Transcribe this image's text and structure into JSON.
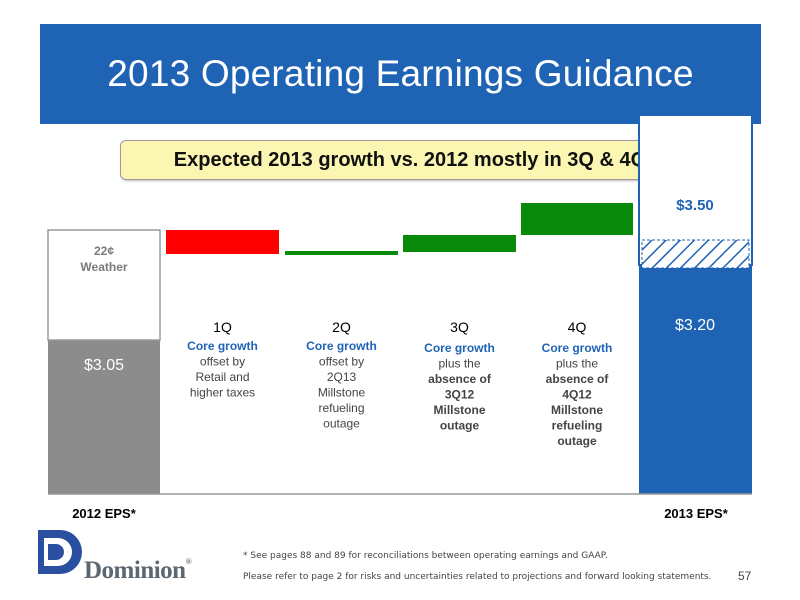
{
  "slide": {
    "title": "2013 Operating Earnings Guidance",
    "callout": "Expected 2013 growth vs. 2012 mostly in 3Q & 4Q",
    "footnote": "* See pages 88 and 89 for reconciliations between operating earnings and GAAP.",
    "disclaimer": "Please refer to page 2 for risks and uncertainties related to projections and forward looking statements.",
    "page_number": "57",
    "logo_text": "Dominion",
    "logo_reg": "®"
  },
  "colors": {
    "banner": "#1f63b5",
    "gray_bar": "#8c8c8c",
    "red": "#ff0000",
    "green": "#0a8a0a",
    "blue_bar": "#1f63b5"
  },
  "chart_data": {
    "type": "bar",
    "subtype": "waterfall",
    "categories": [
      "2012 EPS*",
      "1Q",
      "2Q",
      "3Q",
      "4Q",
      "2013 EPS*"
    ],
    "start": {
      "label": "2012 EPS*",
      "value": 3.05,
      "value_label": "$3.05",
      "weather_adj": 0.22,
      "weather_label_1": "22¢",
      "weather_label_2": "Weather"
    },
    "steps": [
      {
        "label": "1Q",
        "direction": "down",
        "color": "red",
        "lines": [
          {
            "text": "Core growth",
            "style": "core"
          },
          {
            "text": "offset by",
            "style": "normal"
          },
          {
            "text": "Retail and",
            "style": "normal"
          },
          {
            "text": "higher taxes",
            "style": "normal"
          }
        ]
      },
      {
        "label": "2Q",
        "direction": "flat",
        "color": "green",
        "lines": [
          {
            "text": "Core growth",
            "style": "core"
          },
          {
            "text": "offset by",
            "style": "normal"
          },
          {
            "text": "2Q13",
            "style": "normal"
          },
          {
            "text": "Millstone",
            "style": "normal"
          },
          {
            "text": "refueling",
            "style": "normal"
          },
          {
            "text": "outage",
            "style": "normal"
          }
        ]
      },
      {
        "label": "3Q",
        "direction": "up",
        "color": "green",
        "lines": [
          {
            "text": "Core growth",
            "style": "core"
          },
          {
            "text": "plus the",
            "style": "normal"
          },
          {
            "text": "absence of",
            "style": "bold"
          },
          {
            "text": "3Q12",
            "style": "bold"
          },
          {
            "text": "Millstone",
            "style": "bold"
          },
          {
            "text": "outage",
            "style": "bold"
          }
        ]
      },
      {
        "label": "4Q",
        "direction": "up",
        "color": "green",
        "lines": [
          {
            "text": "Core growth",
            "style": "core"
          },
          {
            "text": "plus the",
            "style": "normal"
          },
          {
            "text": "absence of",
            "style": "bold"
          },
          {
            "text": "4Q12",
            "style": "bold"
          },
          {
            "text": "Millstone",
            "style": "bold"
          },
          {
            "text": "refueling",
            "style": "bold"
          },
          {
            "text": "outage",
            "style": "bold"
          }
        ]
      }
    ],
    "end": {
      "label": "2013 EPS*",
      "low": 3.2,
      "high": 3.5,
      "low_label": "$3.20",
      "high_label": "$3.50"
    }
  }
}
